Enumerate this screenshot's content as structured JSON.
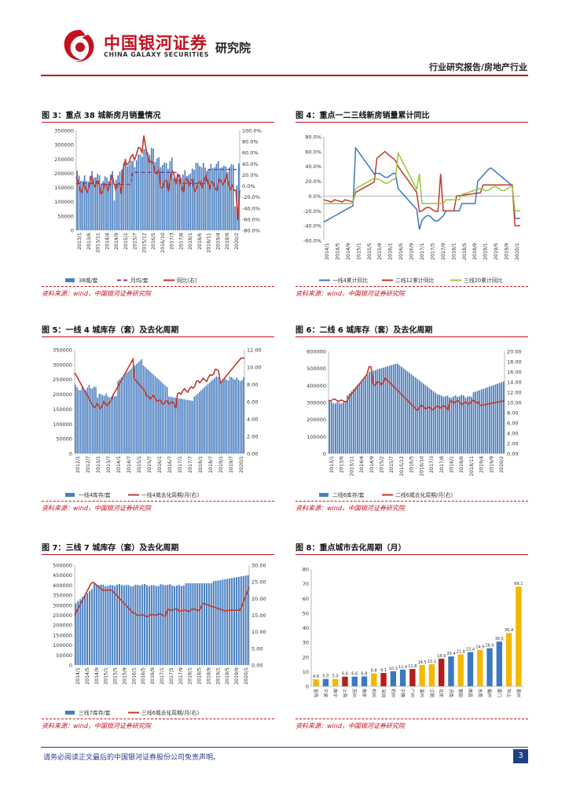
{
  "header": {
    "logo_cn": "中国银河证券",
    "logo_en": "CHINA GALAXY SECURITIES",
    "institute": "研究院",
    "category": "行业研究报告/房地产行业"
  },
  "source_note": "资料来源：wind，中国银河证券研究院",
  "footer": {
    "disclaimer": "请务必阅读正文最后的中国银河证券股份公司免责声明。",
    "page_number": "3"
  },
  "colors": {
    "bar_blue": "#4a7fc1",
    "line_red": "#c0392b",
    "purple": "#7d3c98",
    "green": "#9bc53d",
    "blue_line": "#3a78c2",
    "gold": "#f5b800",
    "red_bar": "#b71c1c"
  },
  "charts": {
    "fig3": {
      "title": "图 3：重点 38 城新房月销量情况",
      "left_ticks": [
        "350000",
        "300000",
        "250000",
        "200000",
        "150000",
        "100000",
        "50000",
        "0"
      ],
      "right_ticks": [
        "100.0%",
        "80.0%",
        "60.0%",
        "40.0%",
        "20.0%",
        "0.0%",
        "-20.0%",
        "-40.0%",
        "-60.0%",
        "-80.0%"
      ],
      "x_ticks": [
        "2013/1",
        "2013/6",
        "2013/11",
        "2014/4",
        "2014/9",
        "2015/2",
        "2015/7",
        "2015/12",
        "2016/5",
        "2016/10",
        "2017/3",
        "2017/8",
        "2018/1",
        "2018/6",
        "2018/11",
        "2019/4",
        "2019/9",
        "2020/2"
      ],
      "legend": [
        "38城/套",
        "月均/套",
        "同比(右)"
      ]
    },
    "fig4": {
      "title": "图 4：重点一二三线新房销量累计同比",
      "left_ticks": [
        "80.0%",
        "60.0%",
        "40.0%",
        "20.0%",
        "0.0%",
        "-20.0%",
        "-40.0%",
        "-60.0%"
      ],
      "x_ticks": [
        "2014/1",
        "2014/5",
        "2014/9",
        "2015/1",
        "2015/5",
        "2015/9",
        "2016/1",
        "2016/5",
        "2016/9",
        "2017/1",
        "2017/5",
        "2017/9",
        "2018/1",
        "2018/5",
        "2018/9",
        "2019/1",
        "2019/5",
        "2019/9",
        "2020/1"
      ],
      "legend": [
        "一线4累计同比",
        "二线12累计同比",
        "三线20累计同比"
      ]
    },
    "fig5": {
      "title": "图 5：一线 4 城库存（套）及去化周期",
      "left_ticks": [
        "350000",
        "300000",
        "250000",
        "200000",
        "150000",
        "100000",
        "50000",
        "0"
      ],
      "right_ticks": [
        "12.00",
        "10.00",
        "8.00",
        "6.00",
        "4.00",
        "2.00",
        "0.00"
      ],
      "x_ticks": [
        "2012/1",
        "2012/7",
        "2013/1",
        "2013/7",
        "2014/1",
        "2014/7",
        "2015/1",
        "2015/7",
        "2016/1",
        "2016/7",
        "2017/1",
        "2017/7",
        "2018/1",
        "2018/7",
        "2019/1",
        "2019/7",
        "2020/1"
      ],
      "legend": [
        "一线4库存/套",
        "一线4城去化周期/月(右)"
      ]
    },
    "fig6": {
      "title": "图 6：二线 6 城库存（套）及去化周期",
      "left_ticks": [
        "600000",
        "500000",
        "400000",
        "300000",
        "200000",
        "100000",
        "0"
      ],
      "right_ticks": [
        "20.00",
        "18.00",
        "16.00",
        "14.00",
        "12.00",
        "10.00",
        "8.00",
        "6.00",
        "4.00",
        "2.00",
        "0.00"
      ],
      "x_ticks": [
        "2013/1",
        "2013/6",
        "2013/11",
        "2014/4",
        "2014/9",
        "2015/2",
        "2015/7",
        "2015/12",
        "2016/5",
        "2016/10",
        "2017/3",
        "2017/8",
        "2018/1",
        "2018/6",
        "2018/11",
        "2019/4",
        "2019/9",
        "2020/2"
      ],
      "legend": [
        "二线6库存/套",
        "二线6城去化周期/月(右)"
      ]
    },
    "fig7": {
      "title": "图 7：三线 7 城库存（套）及去化周期",
      "left_ticks": [
        "500000",
        "450000",
        "400000",
        "350000",
        "300000",
        "250000",
        "200000",
        "150000",
        "100000",
        "50000",
        "0"
      ],
      "right_ticks": [
        "30.00",
        "25.00",
        "20.00",
        "15.00",
        "10.00",
        "5.00",
        "0.00"
      ],
      "x_ticks": [
        "2014/1",
        "2014/5",
        "2014/9",
        "2015/1",
        "2015/5",
        "2015/9",
        "2016/1",
        "2016/5",
        "2016/9",
        "2017/1",
        "2017/5",
        "2017/9",
        "2018/1",
        "2018/5",
        "2018/9",
        "2019/1",
        "2019/5",
        "2019/9",
        "2020/1"
      ],
      "legend": [
        "三线7库存/套",
        "三线6城去化周期/月(右)"
      ]
    },
    "fig8": {
      "title": "图 8：重点城市去化周期（月）",
      "left_ticks": [
        "80",
        "70",
        "60",
        "50",
        "40",
        "30",
        "20",
        "10",
        "0"
      ]
    }
  },
  "chart_data": [
    {
      "type": "bar",
      "title": "图 3：重点 38 城新房月销量情况",
      "ylim": [
        0,
        350000
      ],
      "y2lim": [
        -80,
        100
      ],
      "series_names": [
        "38城/套",
        "月均/套",
        "同比(右)"
      ]
    },
    {
      "type": "line",
      "title": "图 4：重点一二三线新房销量累计同比",
      "ylim": [
        -60,
        80
      ],
      "series_names": [
        "一线4累计同比",
        "二线12累计同比",
        "三线20累计同比"
      ]
    },
    {
      "type": "bar",
      "title": "图 5：一线 4 城库存（套）及去化周期",
      "ylim": [
        0,
        350000
      ],
      "y2lim": [
        0,
        12
      ],
      "series_names": [
        "一线4库存/套",
        "一线4城去化周期/月(右)"
      ]
    },
    {
      "type": "bar",
      "title": "图 6：二线 6 城库存（套）及去化周期",
      "ylim": [
        0,
        600000
      ],
      "y2lim": [
        0,
        20
      ],
      "series_names": [
        "二线6库存/套",
        "二线6城去化周期/月(右)"
      ]
    },
    {
      "type": "bar",
      "title": "图 7：三线 7 城库存（套）及去化周期",
      "ylim": [
        0,
        500000
      ],
      "y2lim": [
        0,
        30
      ],
      "series_names": [
        "三线7库存/套",
        "三线6城去化周期/月(右)"
      ]
    },
    {
      "type": "bar",
      "title": "图 8：重点城市去化周期（月）",
      "ylim": [
        0,
        80
      ],
      "categories": [
        "宝鸡",
        "宁波",
        "南宁",
        "上海",
        "苏州",
        "南京",
        "杭州",
        "深圳",
        "杭州",
        "宁德",
        "广州",
        "温州",
        "江阴",
        "北京",
        "济南",
        "莆田",
        "南昌",
        "东莞",
        "福州",
        "厦门",
        "舟山",
        "泉州"
      ],
      "values": [
        4.8,
        5.0,
        5.0,
        6.6,
        6.6,
        6.8,
        8.8,
        9.1,
        10.3,
        11.4,
        11.8,
        14.5,
        15.1,
        18.9,
        20.4,
        21.8,
        23.4,
        24.9,
        26.0,
        30.5,
        36.4,
        68.1
      ],
      "value_labels": [
        "4.8",
        "5.0",
        "5.0",
        "6.6",
        "6.6",
        "6.8",
        "8.8",
        "9.1",
        "10.3",
        "11.4",
        "11.8",
        "14.5",
        "15.1",
        "18.9",
        "20.4",
        "21.8",
        "23.4",
        "24.9",
        "26.0",
        "30.5",
        "36.4",
        "68.1"
      ],
      "bar_colors": [
        "#f5b800",
        "#3a78c2",
        "#f5b800",
        "#b71c1c",
        "#3a78c2",
        "#3a78c2",
        "#f5b800",
        "#b71c1c",
        "#3a78c2",
        "#3a78c2",
        "#b71c1c",
        "#f5b800",
        "#f5b800",
        "#b71c1c",
        "#3a78c2",
        "#f5b800",
        "#3a78c2",
        "#f5b800",
        "#3a78c2",
        "#3a78c2",
        "#f5b800",
        "#f5b800"
      ]
    }
  ]
}
